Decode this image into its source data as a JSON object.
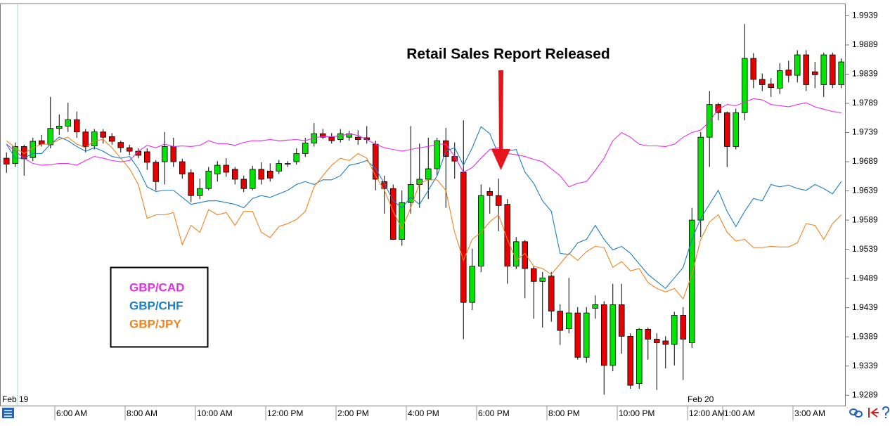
{
  "chart_data": {
    "type": "candlestick",
    "annotation": "Retail Sales Report Released",
    "up_color": "#00e600",
    "down_color": "#e60000",
    "xlim": [
      -0.74,
      95.5
    ],
    "ylim": [
      1.927,
      1.996
    ],
    "yticks": [
      1.9939,
      1.9889,
      1.9839,
      1.9789,
      1.9739,
      1.9689,
      1.9639,
      1.9589,
      1.9539,
      1.9489,
      1.9439,
      1.9389,
      1.9339,
      1.9289
    ],
    "xticks": [
      {
        "value": 5.5,
        "label": "6:00 AM"
      },
      {
        "value": 13.5,
        "label": "8:00 AM"
      },
      {
        "value": 21.5,
        "label": "10:00 AM"
      },
      {
        "value": 29.5,
        "label": "12:00 PM"
      },
      {
        "value": 37.5,
        "label": "2:00 PM"
      },
      {
        "value": 45.5,
        "label": "4:00 PM"
      },
      {
        "value": 53.5,
        "label": "6:00 PM"
      },
      {
        "value": 61.5,
        "label": "8:00 PM"
      },
      {
        "value": 69.5,
        "label": "10:00 PM"
      },
      {
        "value": 77.5,
        "label": "12:00 AM"
      },
      {
        "value": 81.5,
        "label": "1:00 AM"
      },
      {
        "value": 89.5,
        "label": "3:00 AM"
      }
    ],
    "date_labels": [
      {
        "value": -0.5,
        "label": "Feb 19"
      },
      {
        "value": 77.5,
        "label": "Feb 20"
      }
    ],
    "open": [
      1.9695,
      1.9686,
      1.9715,
      1.9696,
      1.9725,
      1.9718,
      1.9746,
      1.975,
      1.9761,
      1.974,
      1.9716,
      1.974,
      1.9732,
      1.9722,
      1.9713,
      1.9707,
      1.9706,
      1.9688,
      1.9689,
      1.9715,
      1.9689,
      1.967,
      1.9631,
      1.9643,
      1.9668,
      1.9683,
      1.9676,
      1.9659,
      1.9643,
      1.9676,
      1.9673,
      1.9673,
      1.9685,
      1.9689,
      1.9703,
      1.9721,
      1.9737,
      1.9731,
      1.9727,
      1.9731,
      1.9731,
      1.973,
      1.9719,
      1.9655,
      1.9643,
      1.9556,
      1.9619,
      1.965,
      1.9659,
      1.9677,
      1.9725,
      1.9698,
      1.9671,
      1.9448,
      1.951,
      1.9638,
      1.9631,
      1.9616,
      1.951,
      1.9552,
      1.9506,
      1.9484,
      1.9493,
      1.9433,
      1.9403,
      1.943,
      1.9354,
      1.9438,
      1.9444,
      1.934,
      1.9444,
      1.939,
      1.9309,
      1.9402,
      1.9385,
      1.9382,
      1.9376,
      1.9426,
      1.9379,
      1.9589,
      1.9731,
      1.9787,
      1.9773,
      1.9715,
      1.9773,
      1.9866,
      1.983,
      1.9822,
      1.9815,
      1.9846,
      1.9837,
      1.9872,
      1.9843,
      1.9821,
      1.9872,
      1.9821
    ],
    "high": [
      1.9705,
      1.9722,
      1.9718,
      1.973,
      1.9735,
      1.98,
      1.977,
      1.979,
      1.9775,
      1.9745,
      1.9745,
      1.9745,
      1.9738,
      1.9725,
      1.9718,
      1.9712,
      1.9712,
      1.9692,
      1.974,
      1.973,
      1.9694,
      1.9676,
      1.966,
      1.968,
      1.969,
      1.9695,
      1.968,
      1.9665,
      1.9682,
      1.9688,
      1.9686,
      1.9692,
      1.969,
      1.9712,
      1.973,
      1.9755,
      1.9745,
      1.9738,
      1.9745,
      1.9742,
      1.9743,
      1.975,
      1.9725,
      1.9665,
      1.965,
      1.964,
      1.975,
      1.972,
      1.973,
      1.973,
      1.9747,
      1.9722,
      1.976,
      1.954,
      1.965,
      1.9645,
      1.966,
      1.9625,
      1.956,
      1.9555,
      1.951,
      1.95,
      1.95,
      1.9445,
      1.949,
      1.944,
      1.944,
      1.946,
      1.945,
      1.948,
      1.948,
      1.9395,
      1.9404,
      1.9405,
      1.9395,
      1.939,
      1.9432,
      1.944,
      1.961,
      1.974,
      1.981,
      1.979,
      1.9775,
      1.978,
      1.9925,
      1.9875,
      1.984,
      1.9832,
      1.9858,
      1.9862,
      1.988,
      1.988,
      1.986,
      1.9876,
      1.9876,
      1.9866
    ],
    "low": [
      1.967,
      1.968,
      1.9665,
      1.969,
      1.9715,
      1.9712,
      1.9735,
      1.974,
      1.973,
      1.9705,
      1.971,
      1.972,
      1.9718,
      1.9705,
      1.97,
      1.9695,
      1.9675,
      1.964,
      1.965,
      1.968,
      1.966,
      1.962,
      1.9625,
      1.964,
      1.9655,
      1.9663,
      1.965,
      1.9637,
      1.964,
      1.965,
      1.9655,
      1.9668,
      1.968,
      1.9684,
      1.9697,
      1.9715,
      1.9728,
      1.972,
      1.9722,
      1.9725,
      1.9718,
      1.972,
      1.964,
      1.96,
      1.9555,
      1.9545,
      1.96,
      1.961,
      1.9625,
      1.9665,
      1.961,
      1.966,
      1.9385,
      1.9435,
      1.95,
      1.96,
      1.957,
      1.948,
      1.9505,
      1.9455,
      1.942,
      1.9405,
      1.9415,
      1.9375,
      1.9395,
      1.935,
      1.9345,
      1.942,
      1.929,
      1.933,
      1.936,
      1.93,
      1.93,
      1.935,
      1.9298,
      1.9335,
      1.934,
      1.9315,
      1.937,
      1.956,
      1.968,
      1.976,
      1.968,
      1.971,
      1.976,
      1.9815,
      1.981,
      1.98,
      1.9805,
      1.9825,
      1.9825,
      1.981,
      1.9815,
      1.98,
      1.9815,
      1.9815
    ],
    "close": [
      1.9685,
      1.9715,
      1.9694,
      1.9724,
      1.9719,
      1.9746,
      1.975,
      1.9761,
      1.974,
      1.9715,
      1.974,
      1.9731,
      1.9724,
      1.9713,
      1.9707,
      1.97,
      1.9688,
      1.9655,
      1.9715,
      1.9689,
      1.9668,
      1.9631,
      1.9643,
      1.9673,
      1.9683,
      1.9671,
      1.9659,
      1.9643,
      1.9676,
      1.9659,
      1.9661,
      1.9686,
      1.9686,
      1.9703,
      1.9721,
      1.9737,
      1.9731,
      1.9725,
      1.9737,
      1.9737,
      1.9727,
      1.9727,
      1.9659,
      1.9643,
      1.9556,
      1.9619,
      1.965,
      1.9659,
      1.9677,
      1.9725,
      1.9698,
      1.969,
      1.9448,
      1.951,
      1.9631,
      1.9631,
      1.9614,
      1.951,
      1.9552,
      1.9506,
      1.9484,
      1.949,
      1.9433,
      1.94,
      1.943,
      1.9354,
      1.943,
      1.9444,
      1.934,
      1.9444,
      1.939,
      1.9306,
      1.9402,
      1.9385,
      1.9379,
      1.9376,
      1.9426,
      1.9385,
      1.9589,
      1.9731,
      1.9787,
      1.9773,
      1.9715,
      1.9773,
      1.9866,
      1.983,
      1.9821,
      1.9816,
      1.9845,
      1.9837,
      1.9872,
      1.9821,
      1.9838,
      1.9872,
      1.9821,
      1.986
    ],
    "series": [
      {
        "name": "GBP/CAD",
        "color": "#e62ee6",
        "values": [
          1.9719,
          1.9707,
          1.9695,
          1.9686,
          1.9683,
          1.9684,
          1.9686,
          1.9686,
          1.9683,
          1.9691,
          1.9698,
          1.9695,
          1.9691,
          1.9689,
          1.9691,
          1.9707,
          1.9717,
          1.9713,
          1.9719,
          1.9715,
          1.9716,
          1.9715,
          1.9717,
          1.9725,
          1.972,
          1.972,
          1.9717,
          1.9722,
          1.9725,
          1.9725,
          1.9727,
          1.9725,
          1.9726,
          1.9727,
          1.9725,
          1.973,
          1.9732,
          1.9732,
          1.9733,
          1.9737,
          1.9734,
          1.9727,
          1.9719,
          1.9713,
          1.971,
          1.9707,
          1.971,
          1.9713,
          1.9715,
          1.9719,
          1.9719,
          1.9698,
          1.9671,
          1.9679,
          1.9695,
          1.971,
          1.9713,
          1.9703,
          1.9701,
          1.9698,
          1.9693,
          1.9689,
          1.9677,
          1.9665,
          1.9646,
          1.9652,
          1.9655,
          1.9674,
          1.9695,
          1.9725,
          1.9739,
          1.9731,
          1.9719,
          1.9716,
          1.9716,
          1.9715,
          1.9719,
          1.9731,
          1.9739,
          1.9743,
          1.9758,
          1.9779,
          1.9787,
          1.9785,
          1.9791,
          1.9797,
          1.9795,
          1.9787,
          1.9785,
          1.9783,
          1.9787,
          1.979,
          1.9783,
          1.9779,
          1.9775,
          1.9773
        ]
      },
      {
        "name": "GBP/CHF",
        "color": "#1a7fc4",
        "values": [
          1.9719,
          1.9695,
          1.9695,
          1.9703,
          1.9703,
          1.9719,
          1.9731,
          1.9725,
          1.9715,
          1.9707,
          1.9713,
          1.9707,
          1.9698,
          1.9695,
          1.9698,
          1.9677,
          1.9646,
          1.9638,
          1.964,
          1.964,
          1.9628,
          1.9616,
          1.9619,
          1.9622,
          1.9622,
          1.9619,
          1.9616,
          1.961,
          1.9626,
          1.9631,
          1.9628,
          1.9634,
          1.964,
          1.965,
          1.9655,
          1.965,
          1.9658,
          1.9658,
          1.9665,
          1.9683,
          1.9686,
          1.9691,
          1.9677,
          1.9652,
          1.9622,
          1.961,
          1.9628,
          1.9616,
          1.964,
          1.9665,
          1.9707,
          1.9713,
          1.9683,
          1.9713,
          1.9749,
          1.9737,
          1.9701,
          1.9707,
          1.971,
          1.9671,
          1.9652,
          1.9622,
          1.9604,
          1.9532,
          1.953,
          1.955,
          1.9556,
          1.958,
          1.9556,
          1.9538,
          1.9544,
          1.9532,
          1.9514,
          1.9496,
          1.9484,
          1.9472,
          1.949,
          1.9508,
          1.9556,
          1.9592,
          1.9616,
          1.964,
          1.9604,
          1.9578,
          1.9604,
          1.9626,
          1.9622,
          1.965,
          1.9646,
          1.9649,
          1.9643,
          1.964,
          1.965,
          1.9643,
          1.9634,
          1.9655
        ]
      },
      {
        "name": "GBP/JPY",
        "color": "#f0841e",
        "values": [
          1.9725,
          1.9713,
          1.9703,
          1.9713,
          1.9719,
          1.9719,
          1.9727,
          1.9731,
          1.9719,
          1.9713,
          1.9725,
          1.9727,
          1.9713,
          1.9695,
          1.9677,
          1.965,
          1.9592,
          1.9598,
          1.9598,
          1.9602,
          1.9547,
          1.958,
          1.9568,
          1.9607,
          1.9598,
          1.9602,
          1.958,
          1.9604,
          1.9604,
          1.9568,
          1.9559,
          1.9578,
          1.9583,
          1.959,
          1.9604,
          1.9646,
          1.9665,
          1.9683,
          1.9695,
          1.9691,
          1.9703,
          1.9695,
          1.9665,
          1.964,
          1.9604,
          1.9574,
          1.961,
          1.9652,
          1.9658,
          1.9658,
          1.964,
          1.9568,
          1.952,
          1.9556,
          1.9568,
          1.9586,
          1.9598,
          1.9556,
          1.952,
          1.9532,
          1.951,
          1.9506,
          1.9496,
          1.9514,
          1.9532,
          1.952,
          1.9535,
          1.9544,
          1.9542,
          1.9508,
          1.9518,
          1.9502,
          1.9506,
          1.9482,
          1.9472,
          1.9466,
          1.9472,
          1.9454,
          1.9496,
          1.9556,
          1.9586,
          1.9598,
          1.9568,
          1.9553,
          1.9556,
          1.9542,
          1.9542,
          1.9544,
          1.9543,
          1.9543,
          1.955,
          1.9583,
          1.958,
          1.9556,
          1.9583,
          1.9598
        ]
      }
    ]
  }
}
